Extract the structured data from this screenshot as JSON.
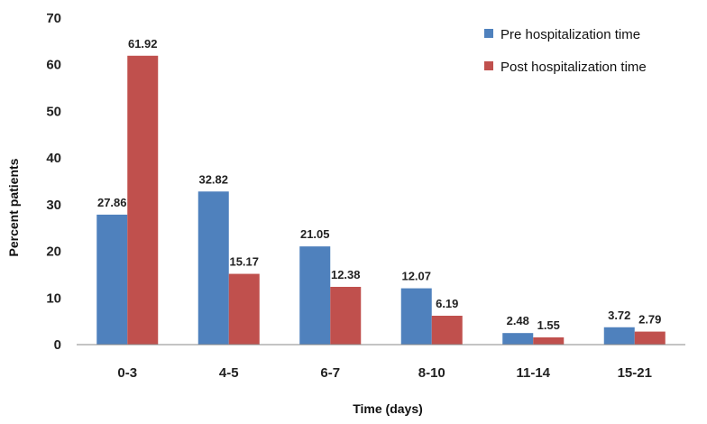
{
  "chart_data": {
    "type": "bar",
    "title": "",
    "xlabel": "Time (days)",
    "ylabel": "Percent patients",
    "categories": [
      "0-3",
      "4-5",
      "6-7",
      "8-10",
      "11-14",
      "15-21"
    ],
    "series": [
      {
        "name": "Pre hospitalization time",
        "color": "#4F81BD",
        "values": [
          27.86,
          32.82,
          21.05,
          12.07,
          2.48,
          3.72
        ],
        "labels": [
          "27.86",
          "32.82",
          "21.05",
          "12.07",
          "2.48",
          "3.72"
        ]
      },
      {
        "name": "Post hospitalization time",
        "color": "#C0504D",
        "values": [
          61.92,
          15.17,
          12.38,
          6.19,
          1.55,
          2.79
        ],
        "labels": [
          "61.92",
          "15.17",
          "12.38",
          "6.19",
          "1.55",
          "2.79"
        ]
      }
    ],
    "ylim": [
      0,
      70
    ],
    "yticks": [
      "0",
      "10",
      "20",
      "30",
      "40",
      "50",
      "60",
      "70"
    ],
    "grid": false,
    "legend_position": "top-right"
  }
}
